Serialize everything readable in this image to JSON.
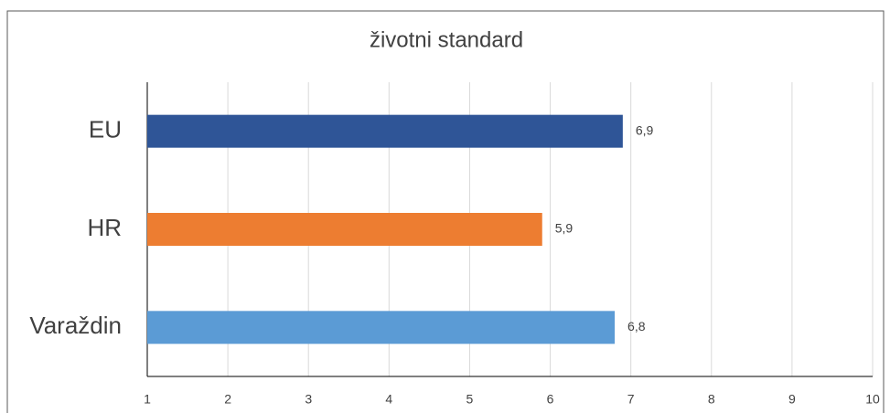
{
  "chart_data": {
    "type": "bar",
    "orientation": "horizontal",
    "title": "životni standard",
    "categories": [
      "EU",
      "HR",
      "Varaždin"
    ],
    "values": [
      6.9,
      5.9,
      6.8
    ],
    "value_labels": [
      "6,9",
      "5,9",
      "6,8"
    ],
    "colors": [
      "#2f5597",
      "#ed7d31",
      "#5b9bd5"
    ],
    "xlim": [
      1,
      10
    ],
    "xticks": [
      1,
      2,
      3,
      4,
      5,
      6,
      7,
      8,
      9,
      10
    ],
    "grid": true
  }
}
